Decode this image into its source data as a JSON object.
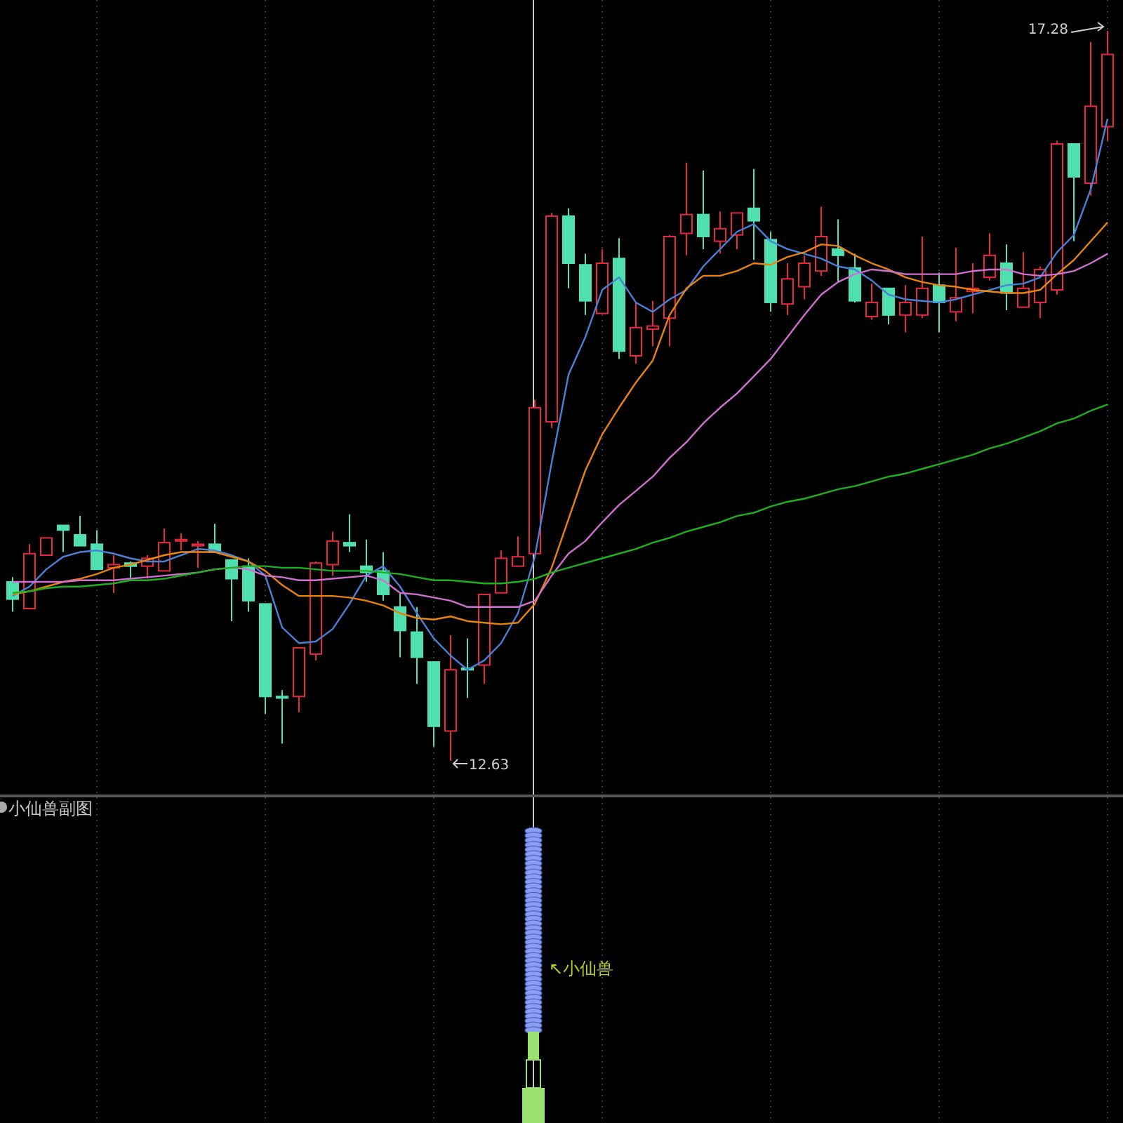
{
  "chart_data": {
    "type": "candlestick",
    "categories": [
      null,
      null,
      null,
      null,
      null,
      null,
      null,
      null,
      null,
      null,
      null,
      null,
      null,
      null,
      null,
      null,
      null,
      null,
      null,
      null,
      null,
      null,
      null,
      null,
      null,
      null,
      null,
      null,
      null,
      null,
      null,
      null,
      null,
      null,
      null,
      null,
      null,
      null,
      null,
      null,
      null,
      null,
      null,
      null,
      null,
      null,
      null,
      null,
      null,
      null,
      null,
      null,
      null,
      null,
      null,
      null,
      null,
      null,
      null,
      null,
      null,
      null,
      null,
      null,
      null,
      null
    ],
    "ohlc": [
      [
        13.77,
        13.8,
        13.58,
        13.66
      ],
      [
        13.6,
        14.01,
        13.6,
        13.95
      ],
      [
        13.94,
        14.05,
        13.94,
        14.05
      ],
      [
        14.13,
        14.13,
        13.96,
        14.1
      ],
      [
        14.07,
        14.19,
        14.0,
        14.0
      ],
      [
        14.01,
        14.1,
        13.85,
        13.85
      ],
      [
        13.86,
        13.94,
        13.7,
        13.88
      ],
      [
        13.89,
        13.9,
        13.79,
        13.87
      ],
      [
        13.87,
        13.94,
        13.79,
        13.92
      ],
      [
        13.84,
        14.11,
        13.84,
        14.02
      ],
      [
        14.03,
        14.08,
        13.97,
        14.04
      ],
      [
        14.0,
        14.03,
        13.86,
        14.01
      ],
      [
        14.01,
        14.14,
        13.96,
        13.96
      ],
      [
        13.91,
        13.91,
        13.52,
        13.79
      ],
      [
        13.87,
        13.92,
        13.58,
        13.65
      ],
      [
        13.63,
        13.63,
        12.93,
        13.04
      ],
      [
        13.04,
        13.08,
        12.74,
        13.03
      ],
      [
        13.04,
        13.35,
        12.94,
        13.35
      ],
      [
        13.31,
        13.9,
        13.27,
        13.89
      ],
      [
        13.88,
        14.09,
        13.81,
        14.03
      ],
      [
        14.02,
        14.2,
        13.96,
        14.0
      ],
      [
        13.87,
        14.04,
        13.77,
        13.83
      ],
      [
        13.84,
        13.96,
        13.65,
        13.69
      ],
      [
        13.61,
        13.7,
        13.29,
        13.46
      ],
      [
        13.45,
        13.61,
        13.12,
        13.29
      ],
      [
        13.26,
        13.26,
        12.72,
        12.85
      ],
      [
        12.82,
        13.43,
        12.63,
        13.21
      ],
      [
        13.22,
        13.41,
        13.03,
        13.21
      ],
      [
        13.24,
        13.69,
        13.12,
        13.69
      ],
      [
        13.7,
        13.97,
        13.7,
        13.92
      ],
      [
        13.87,
        14.06,
        13.87,
        13.93
      ],
      [
        13.95,
        14.93,
        13.94,
        14.88
      ],
      [
        14.79,
        16.12,
        14.75,
        16.1
      ],
      [
        16.1,
        16.15,
        15.64,
        15.8
      ],
      [
        15.79,
        15.86,
        15.47,
        15.56
      ],
      [
        15.48,
        15.89,
        15.48,
        15.8
      ],
      [
        15.83,
        15.96,
        15.19,
        15.24
      ],
      [
        15.21,
        15.55,
        15.16,
        15.39
      ],
      [
        15.38,
        15.56,
        15.27,
        15.4
      ],
      [
        15.45,
        15.98,
        15.27,
        15.97
      ],
      [
        15.99,
        16.44,
        15.85,
        16.11
      ],
      [
        16.11,
        16.39,
        15.89,
        15.97
      ],
      [
        15.94,
        16.13,
        15.86,
        16.02
      ],
      [
        15.98,
        16.12,
        15.89,
        16.12
      ],
      [
        16.15,
        16.4,
        15.82,
        16.07
      ],
      [
        15.95,
        16.0,
        15.49,
        15.55
      ],
      [
        15.54,
        15.8,
        15.47,
        15.7
      ],
      [
        15.65,
        15.85,
        15.57,
        15.8
      ],
      [
        15.75,
        16.16,
        15.72,
        15.97
      ],
      [
        15.89,
        16.08,
        15.68,
        15.85
      ],
      [
        15.77,
        15.86,
        15.55,
        15.56
      ],
      [
        15.46,
        15.67,
        15.44,
        15.55
      ],
      [
        15.64,
        15.64,
        15.41,
        15.47
      ],
      [
        15.47,
        15.66,
        15.36,
        15.55
      ],
      [
        15.47,
        15.97,
        15.45,
        15.64
      ],
      [
        15.66,
        15.74,
        15.36,
        15.55
      ],
      [
        15.49,
        15.9,
        15.43,
        15.58
      ],
      [
        15.62,
        15.8,
        15.48,
        15.64
      ],
      [
        15.71,
        15.99,
        15.69,
        15.85
      ],
      [
        15.8,
        15.92,
        15.5,
        15.61
      ],
      [
        15.52,
        15.87,
        15.52,
        15.64
      ],
      [
        15.55,
        15.78,
        15.45,
        15.76
      ],
      [
        15.63,
        16.58,
        15.6,
        16.56
      ],
      [
        16.56,
        16.56,
        15.94,
        16.35
      ],
      [
        16.31,
        17.21,
        16.23,
        16.8
      ],
      [
        16.67,
        17.28,
        16.58,
        17.13
      ]
    ],
    "colors": [
      "#4fe0b0",
      "#e8283c",
      "#e8283c",
      "#4fe0b0",
      "#4fe0b0",
      "#4fe0b0",
      "#e8283c",
      "#4fe0b0",
      "#e8283c",
      "#e8283c",
      "#e8283c",
      "#e8283c",
      "#4fe0b0",
      "#4fe0b0",
      "#4fe0b0",
      "#4fe0b0",
      "#4fe0b0",
      "#e8283c",
      "#e8283c",
      "#e8283c",
      "#4fe0b0",
      "#4fe0b0",
      "#4fe0b0",
      "#4fe0b0",
      "#4fe0b0",
      "#4fe0b0",
      "#e8283c",
      "#4fe0b0",
      "#e8283c",
      "#e8283c",
      "#e8283c",
      "#e8283c",
      "#e8283c",
      "#4fe0b0",
      "#4fe0b0",
      "#e8283c",
      "#4fe0b0",
      "#e8283c",
      "#e8283c",
      "#e8283c",
      "#e8283c",
      "#4fe0b0",
      "#e8283c",
      "#e8283c",
      "#4fe0b0",
      "#4fe0b0",
      "#e8283c",
      "#e8283c",
      "#e8283c",
      "#4fe0b0",
      "#4fe0b0",
      "#e8283c",
      "#4fe0b0",
      "#e8283c",
      "#e8283c",
      "#4fe0b0",
      "#e8283c",
      "#e8283c",
      "#e8283c",
      "#4fe0b0",
      "#e8283c",
      "#e8283c",
      "#e8283c",
      "#4fe0b0",
      "#e8283c",
      "#e8283c"
    ],
    "series": [
      {
        "type": "line",
        "color": "#4a80d8",
        "values": [
          13.68,
          13.74,
          13.85,
          13.93,
          13.96,
          13.97,
          13.95,
          13.92,
          13.9,
          13.9,
          13.94,
          13.98,
          13.97,
          13.94,
          13.9,
          13.81,
          13.48,
          13.38,
          13.39,
          13.47,
          13.63,
          13.81,
          13.87,
          13.74,
          13.57,
          13.41,
          13.3,
          13.21,
          13.27,
          13.38,
          13.57,
          13.93,
          14.53,
          15.09,
          15.33,
          15.63,
          15.71,
          15.55,
          15.49,
          15.57,
          15.63,
          15.78,
          15.89,
          16.0,
          16.05,
          15.94,
          15.89,
          15.86,
          15.83,
          15.78,
          15.76,
          15.69,
          15.6,
          15.57,
          15.56,
          15.55,
          15.57,
          15.6,
          15.63,
          15.66,
          15.67,
          15.71,
          15.87,
          15.98,
          16.27,
          16.72
        ]
      },
      {
        "type": "line",
        "color": "#e8840c",
        "values": [
          13.69,
          13.71,
          13.74,
          13.77,
          13.79,
          13.82,
          13.86,
          13.88,
          13.91,
          13.94,
          13.96,
          13.96,
          13.96,
          13.93,
          13.9,
          13.84,
          13.75,
          13.68,
          13.68,
          13.68,
          13.67,
          13.65,
          13.62,
          13.57,
          13.54,
          13.53,
          13.55,
          13.52,
          13.51,
          13.5,
          13.51,
          13.63,
          13.86,
          14.17,
          14.48,
          14.71,
          14.88,
          15.04,
          15.18,
          15.47,
          15.64,
          15.72,
          15.72,
          15.75,
          15.8,
          15.79,
          15.84,
          15.87,
          15.92,
          15.91,
          15.85,
          15.8,
          15.76,
          15.71,
          15.68,
          15.66,
          15.65,
          15.63,
          15.62,
          15.61,
          15.61,
          15.63,
          15.73,
          15.82,
          15.94,
          16.06
        ]
      },
      {
        "type": "line",
        "color": "#d070d0",
        "values": [
          13.77,
          13.77,
          13.77,
          13.77,
          13.78,
          13.78,
          13.78,
          13.79,
          13.8,
          13.81,
          13.82,
          13.83,
          13.85,
          13.86,
          13.85,
          13.81,
          13.8,
          13.78,
          13.78,
          13.79,
          13.8,
          13.81,
          13.78,
          13.7,
          13.69,
          13.67,
          13.65,
          13.61,
          13.61,
          13.61,
          13.61,
          13.65,
          13.81,
          13.95,
          14.03,
          14.15,
          14.26,
          14.35,
          14.44,
          14.56,
          14.66,
          14.78,
          14.88,
          14.97,
          15.08,
          15.19,
          15.33,
          15.47,
          15.6,
          15.68,
          15.73,
          15.76,
          15.75,
          15.73,
          15.73,
          15.73,
          15.73,
          15.75,
          15.76,
          15.76,
          15.73,
          15.72,
          15.73,
          15.75,
          15.8,
          15.86
        ]
      },
      {
        "type": "line",
        "color": "#1fb01f",
        "values": [
          13.7,
          13.71,
          13.73,
          13.74,
          13.74,
          13.75,
          13.76,
          13.78,
          13.78,
          13.79,
          13.81,
          13.83,
          13.85,
          13.86,
          13.87,
          13.87,
          13.86,
          13.86,
          13.85,
          13.84,
          13.84,
          13.84,
          13.83,
          13.82,
          13.8,
          13.78,
          13.78,
          13.77,
          13.76,
          13.76,
          13.77,
          13.79,
          13.83,
          13.86,
          13.89,
          13.92,
          13.95,
          13.98,
          14.02,
          14.05,
          14.09,
          14.12,
          14.15,
          14.19,
          14.21,
          14.25,
          14.28,
          14.3,
          14.33,
          14.36,
          14.38,
          14.41,
          14.44,
          14.46,
          14.49,
          14.52,
          14.55,
          14.58,
          14.62,
          14.65,
          14.69,
          14.73,
          14.78,
          14.81,
          14.86,
          14.9
        ]
      }
    ],
    "annotations": [
      "17.28",
      "12.63",
      "小仙兽副图",
      "↖小仙兽"
    ],
    "grid": "x"
  }
}
